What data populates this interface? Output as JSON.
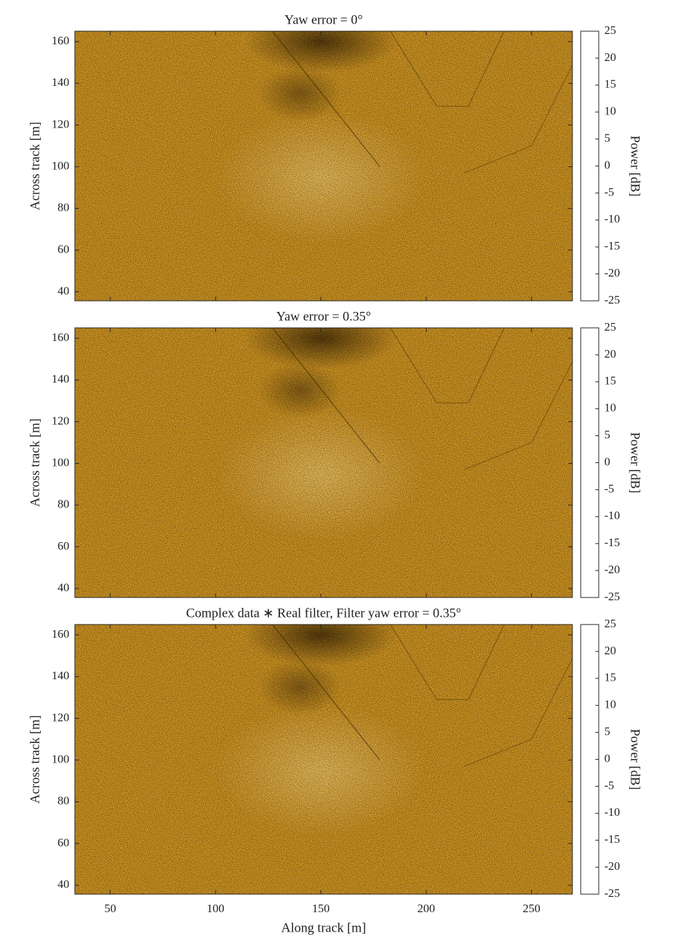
{
  "chart_data": [
    {
      "type": "heatmap",
      "title": "Yaw error = 0°",
      "ylabel": "Across track [m]",
      "xlim": [
        33.2,
        269.4
      ],
      "xticks": [
        50,
        100,
        150,
        200,
        250
      ],
      "ylim": [
        35.7,
        165
      ],
      "yticks": [
        40,
        60,
        80,
        100,
        120,
        140,
        160
      ],
      "colorbar": {
        "label": "Power [dB]",
        "lim": [
          -25,
          25
        ],
        "ticks": [
          25,
          20,
          15,
          10,
          5,
          0,
          -5,
          -10,
          -15,
          -20,
          -25
        ],
        "colors": [
          "#000000",
          "#5a3a06",
          "#c07d0a",
          "#ffa500",
          "#ffd27a",
          "#ffffff"
        ]
      }
    },
    {
      "type": "heatmap",
      "title": "Yaw error = 0.35°",
      "ylabel": "Across track [m]",
      "xlim": [
        33.2,
        269.4
      ],
      "xticks": [
        50,
        100,
        150,
        200,
        250
      ],
      "ylim": [
        35.7,
        165
      ],
      "yticks": [
        40,
        60,
        80,
        100,
        120,
        140,
        160
      ],
      "colorbar": {
        "label": "Power [dB]",
        "lim": [
          -25,
          25
        ],
        "ticks": [
          25,
          20,
          15,
          10,
          5,
          0,
          -5,
          -10,
          -15,
          -20,
          -25
        ],
        "colors": [
          "#000000",
          "#5a3a06",
          "#c07d0a",
          "#ffa500",
          "#ffd27a",
          "#ffffff"
        ]
      }
    },
    {
      "type": "heatmap",
      "title": "Complex data ∗ Real filter, Filter yaw error = 0.35°",
      "ylabel": "Across track [m]",
      "xlabel": "Along track [m]",
      "xlim": [
        33.2,
        269.4
      ],
      "xticks": [
        50,
        100,
        150,
        200,
        250
      ],
      "ylim": [
        35.7,
        165
      ],
      "yticks": [
        40,
        60,
        80,
        100,
        120,
        140,
        160
      ],
      "colorbar": {
        "label": "Power [dB]",
        "lim": [
          -25,
          25
        ],
        "ticks": [
          25,
          20,
          15,
          10,
          5,
          0,
          -5,
          -10,
          -15,
          -20,
          -25
        ],
        "colors": [
          "#000000",
          "#5a3a06",
          "#c07d0a",
          "#ffa500",
          "#ffd27a",
          "#ffffff"
        ]
      }
    }
  ]
}
